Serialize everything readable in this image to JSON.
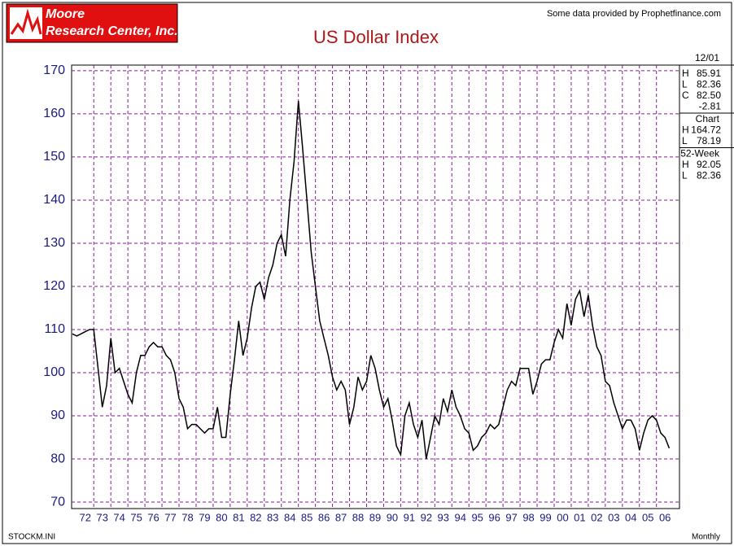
{
  "header": {
    "logo_line1": "Moore",
    "logo_line2": "Research Center, Inc.",
    "credit": "Some data provided by Prophetfinance.com"
  },
  "footer": {
    "left": "STOCKM.INI",
    "right": "Monthly"
  },
  "panel": {
    "date": "12/01",
    "last": [
      {
        "label": "H",
        "value": "85.91"
      },
      {
        "label": "L",
        "value": "82.36"
      },
      {
        "label": "C",
        "value": "82.50"
      },
      {
        "label": "",
        "value": "-2.81"
      }
    ],
    "chart_title": "Chart",
    "chart": [
      {
        "label": "H",
        "value": "164.72"
      },
      {
        "label": "L",
        "value": "78.19"
      }
    ],
    "week_title": "52-Week",
    "week": [
      {
        "label": "H",
        "value": "92.05"
      },
      {
        "label": "L",
        "value": "82.36"
      }
    ]
  },
  "chart_data": {
    "type": "line",
    "title": "US Dollar Index",
    "x": [
      1971.75,
      1972,
      1972.25,
      1972.5,
      1972.75,
      1973,
      1973.25,
      1973.5,
      1973.75,
      1974,
      1974.25,
      1974.5,
      1974.75,
      1975,
      1975.25,
      1975.5,
      1975.75,
      1976,
      1976.25,
      1976.5,
      1976.75,
      1977,
      1977.25,
      1977.5,
      1977.75,
      1978,
      1978.25,
      1978.5,
      1978.75,
      1979,
      1979.25,
      1979.5,
      1979.75,
      1980,
      1980.25,
      1980.5,
      1980.75,
      1981,
      1981.25,
      1981.5,
      1981.75,
      1982,
      1982.25,
      1982.5,
      1982.75,
      1983,
      1983.25,
      1983.5,
      1983.75,
      1984,
      1984.25,
      1984.5,
      1984.75,
      1985,
      1985.25,
      1985.5,
      1985.75,
      1986,
      1986.25,
      1986.5,
      1986.75,
      1987,
      1987.25,
      1987.5,
      1987.75,
      1988,
      1988.25,
      1988.5,
      1988.75,
      1989,
      1989.25,
      1989.5,
      1989.75,
      1990,
      1990.25,
      1990.5,
      1990.75,
      1991,
      1991.25,
      1991.5,
      1991.75,
      1992,
      1992.25,
      1992.5,
      1992.75,
      1993,
      1993.25,
      1993.5,
      1993.75,
      1994,
      1994.25,
      1994.5,
      1994.75,
      1995,
      1995.25,
      1995.5,
      1995.75,
      1996,
      1996.25,
      1996.5,
      1996.75,
      1997,
      1997.25,
      1997.5,
      1997.75,
      1998,
      1998.25,
      1998.5,
      1998.75,
      1999,
      1999.25,
      1999.5,
      1999.75,
      2000,
      2000.25,
      2000.5,
      2000.75,
      2001,
      2001.25,
      2001.5,
      2001.75,
      2002,
      2002.25,
      2002.5,
      2002.75,
      2003,
      2003.25,
      2003.5,
      2003.75,
      2004,
      2004.25,
      2004.5,
      2004.75,
      2005,
      2005.25,
      2005.5,
      2005.75,
      2006,
      2006.25,
      2006.5,
      2006.75
    ],
    "series": [
      {
        "color": "#000000",
        "values": [
          109,
          108.5,
          109,
          109.5,
          110,
          110,
          101,
          92,
          97,
          108,
          100,
          101,
          98,
          95,
          93,
          100,
          104,
          104,
          106,
          107,
          106,
          106,
          104,
          103,
          100,
          94,
          92,
          87,
          88,
          88,
          87,
          86,
          87,
          87,
          92,
          85,
          85,
          95,
          103,
          112,
          104,
          108,
          115,
          120,
          121,
          117,
          122,
          125,
          130,
          132,
          127,
          140,
          149,
          163,
          152,
          140,
          128,
          120,
          112,
          108,
          104,
          99,
          96,
          98,
          96,
          88,
          92,
          99,
          96,
          98,
          104,
          101,
          96,
          92,
          94,
          89,
          83,
          81,
          90,
          93,
          88,
          85,
          89,
          80,
          85,
          90,
          88,
          94,
          91,
          96,
          92,
          90,
          87,
          86,
          82,
          83,
          85,
          86,
          88,
          87,
          88,
          92,
          96,
          98,
          97,
          101,
          101,
          101,
          95,
          98,
          102,
          103,
          103,
          107,
          110,
          108,
          116,
          111,
          117,
          119,
          113,
          118,
          111,
          106,
          104,
          98,
          97,
          93,
          90,
          87,
          89,
          89,
          87,
          82,
          86,
          89,
          90,
          89,
          86,
          85,
          82.5
        ]
      }
    ],
    "xlim": [
      1971.7,
      2007.35
    ],
    "xticks": [
      {
        "value": 1972.5,
        "label": "72"
      },
      {
        "value": 1973.5,
        "label": "73"
      },
      {
        "value": 1974.5,
        "label": "74"
      },
      {
        "value": 1975.5,
        "label": "75"
      },
      {
        "value": 1976.5,
        "label": "76"
      },
      {
        "value": 1977.5,
        "label": "77"
      },
      {
        "value": 1978.5,
        "label": "78"
      },
      {
        "value": 1979.5,
        "label": "79"
      },
      {
        "value": 1980.5,
        "label": "80"
      },
      {
        "value": 1981.5,
        "label": "81"
      },
      {
        "value": 1982.5,
        "label": "82"
      },
      {
        "value": 1983.5,
        "label": "83"
      },
      {
        "value": 1984.5,
        "label": "84"
      },
      {
        "value": 1985.5,
        "label": "85"
      },
      {
        "value": 1986.5,
        "label": "86"
      },
      {
        "value": 1987.5,
        "label": "87"
      },
      {
        "value": 1988.5,
        "label": "88"
      },
      {
        "value": 1989.5,
        "label": "89"
      },
      {
        "value": 1990.5,
        "label": "90"
      },
      {
        "value": 1991.5,
        "label": "91"
      },
      {
        "value": 1992.5,
        "label": "92"
      },
      {
        "value": 1993.5,
        "label": "93"
      },
      {
        "value": 1994.5,
        "label": "94"
      },
      {
        "value": 1995.5,
        "label": "95"
      },
      {
        "value": 1996.5,
        "label": "96"
      },
      {
        "value": 1997.5,
        "label": "97"
      },
      {
        "value": 1998.5,
        "label": "98"
      },
      {
        "value": 1999.5,
        "label": "99"
      },
      {
        "value": 2000.5,
        "label": "00"
      },
      {
        "value": 2001.5,
        "label": "01"
      },
      {
        "value": 2002.5,
        "label": "02"
      },
      {
        "value": 2003.5,
        "label": "03"
      },
      {
        "value": 2004.5,
        "label": "04"
      },
      {
        "value": 2005.5,
        "label": "05"
      },
      {
        "value": 2006.5,
        "label": "06"
      }
    ],
    "xgrid": [
      1973,
      1974,
      1975,
      1976,
      1977,
      1978,
      1979,
      1980,
      1981,
      1982,
      1983,
      1984,
      1985,
      1986,
      1987,
      1988,
      1989,
      1990,
      1991,
      1992,
      1993,
      1994,
      1995,
      1996,
      1997,
      1998,
      1999,
      2000,
      2001,
      2002,
      2003,
      2004,
      2005,
      2006
    ],
    "ylim": [
      68.5,
      171.3
    ],
    "yticks": [
      70,
      80,
      90,
      100,
      110,
      120,
      130,
      140,
      150,
      160,
      170
    ],
    "grid": true,
    "grid_color": "#8b1a9b"
  }
}
